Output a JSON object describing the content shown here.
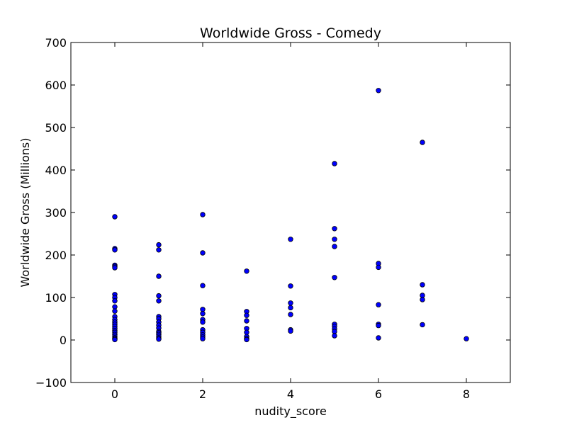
{
  "chart_data": {
    "type": "scatter",
    "title": "Worldwide Gross - Comedy",
    "xlabel": "nudity_score",
    "ylabel": "Worldwide Gross (Millions)",
    "xlim": [
      -1,
      9
    ],
    "ylim": [
      -100,
      700
    ],
    "x_ticks": [
      0,
      2,
      4,
      6,
      8
    ],
    "y_ticks": [
      -100,
      0,
      100,
      200,
      300,
      400,
      500,
      600,
      700
    ],
    "x_tick_labels": [
      "0",
      "2",
      "4",
      "6",
      "8"
    ],
    "y_tick_labels": [
      "−100",
      "0",
      "100",
      "200",
      "300",
      "400",
      "500",
      "600",
      "700"
    ],
    "grid": false,
    "legend": "none",
    "marker_color": "#0000ff",
    "marker_edge_color": "#000000",
    "points": [
      {
        "x": 0,
        "y": 290
      },
      {
        "x": 0,
        "y": 215
      },
      {
        "x": 0,
        "y": 212
      },
      {
        "x": 0,
        "y": 176
      },
      {
        "x": 0,
        "y": 173
      },
      {
        "x": 0,
        "y": 170
      },
      {
        "x": 0,
        "y": 107
      },
      {
        "x": 0,
        "y": 100
      },
      {
        "x": 0,
        "y": 92
      },
      {
        "x": 0,
        "y": 78
      },
      {
        "x": 0,
        "y": 68
      },
      {
        "x": 0,
        "y": 55
      },
      {
        "x": 0,
        "y": 48
      },
      {
        "x": 0,
        "y": 42
      },
      {
        "x": 0,
        "y": 37
      },
      {
        "x": 0,
        "y": 32
      },
      {
        "x": 0,
        "y": 27
      },
      {
        "x": 0,
        "y": 22
      },
      {
        "x": 0,
        "y": 18
      },
      {
        "x": 0,
        "y": 13
      },
      {
        "x": 0,
        "y": 9
      },
      {
        "x": 0,
        "y": 5
      },
      {
        "x": 0,
        "y": 3
      },
      {
        "x": 0,
        "y": 1
      },
      {
        "x": 1,
        "y": 224
      },
      {
        "x": 1,
        "y": 212
      },
      {
        "x": 1,
        "y": 150
      },
      {
        "x": 1,
        "y": 104
      },
      {
        "x": 1,
        "y": 92
      },
      {
        "x": 1,
        "y": 55
      },
      {
        "x": 1,
        "y": 50
      },
      {
        "x": 1,
        "y": 42
      },
      {
        "x": 1,
        "y": 35
      },
      {
        "x": 1,
        "y": 28
      },
      {
        "x": 1,
        "y": 20
      },
      {
        "x": 1,
        "y": 17
      },
      {
        "x": 1,
        "y": 13
      },
      {
        "x": 1,
        "y": 9
      },
      {
        "x": 1,
        "y": 5
      },
      {
        "x": 1,
        "y": 2
      },
      {
        "x": 2,
        "y": 295
      },
      {
        "x": 2,
        "y": 205
      },
      {
        "x": 2,
        "y": 128
      },
      {
        "x": 2,
        "y": 72
      },
      {
        "x": 2,
        "y": 62
      },
      {
        "x": 2,
        "y": 48
      },
      {
        "x": 2,
        "y": 42
      },
      {
        "x": 2,
        "y": 24
      },
      {
        "x": 2,
        "y": 18
      },
      {
        "x": 2,
        "y": 12
      },
      {
        "x": 2,
        "y": 7
      },
      {
        "x": 2,
        "y": 3
      },
      {
        "x": 3,
        "y": 162
      },
      {
        "x": 3,
        "y": 67
      },
      {
        "x": 3,
        "y": 58
      },
      {
        "x": 3,
        "y": 45
      },
      {
        "x": 3,
        "y": 27
      },
      {
        "x": 3,
        "y": 18
      },
      {
        "x": 3,
        "y": 8
      },
      {
        "x": 3,
        "y": 3
      },
      {
        "x": 3,
        "y": 1
      },
      {
        "x": 4,
        "y": 237
      },
      {
        "x": 4,
        "y": 127
      },
      {
        "x": 4,
        "y": 87
      },
      {
        "x": 4,
        "y": 76
      },
      {
        "x": 4,
        "y": 60
      },
      {
        "x": 4,
        "y": 24
      },
      {
        "x": 4,
        "y": 21
      },
      {
        "x": 5,
        "y": 415
      },
      {
        "x": 5,
        "y": 262
      },
      {
        "x": 5,
        "y": 237
      },
      {
        "x": 5,
        "y": 220
      },
      {
        "x": 5,
        "y": 147
      },
      {
        "x": 5,
        "y": 37
      },
      {
        "x": 5,
        "y": 32
      },
      {
        "x": 5,
        "y": 26
      },
      {
        "x": 5,
        "y": 20
      },
      {
        "x": 5,
        "y": 10
      },
      {
        "x": 6,
        "y": 587
      },
      {
        "x": 6,
        "y": 180
      },
      {
        "x": 6,
        "y": 171
      },
      {
        "x": 6,
        "y": 83
      },
      {
        "x": 6,
        "y": 37
      },
      {
        "x": 6,
        "y": 34
      },
      {
        "x": 6,
        "y": 5
      },
      {
        "x": 7,
        "y": 465
      },
      {
        "x": 7,
        "y": 130
      },
      {
        "x": 7,
        "y": 105
      },
      {
        "x": 7,
        "y": 95
      },
      {
        "x": 7,
        "y": 36
      },
      {
        "x": 8,
        "y": 3
      }
    ]
  }
}
